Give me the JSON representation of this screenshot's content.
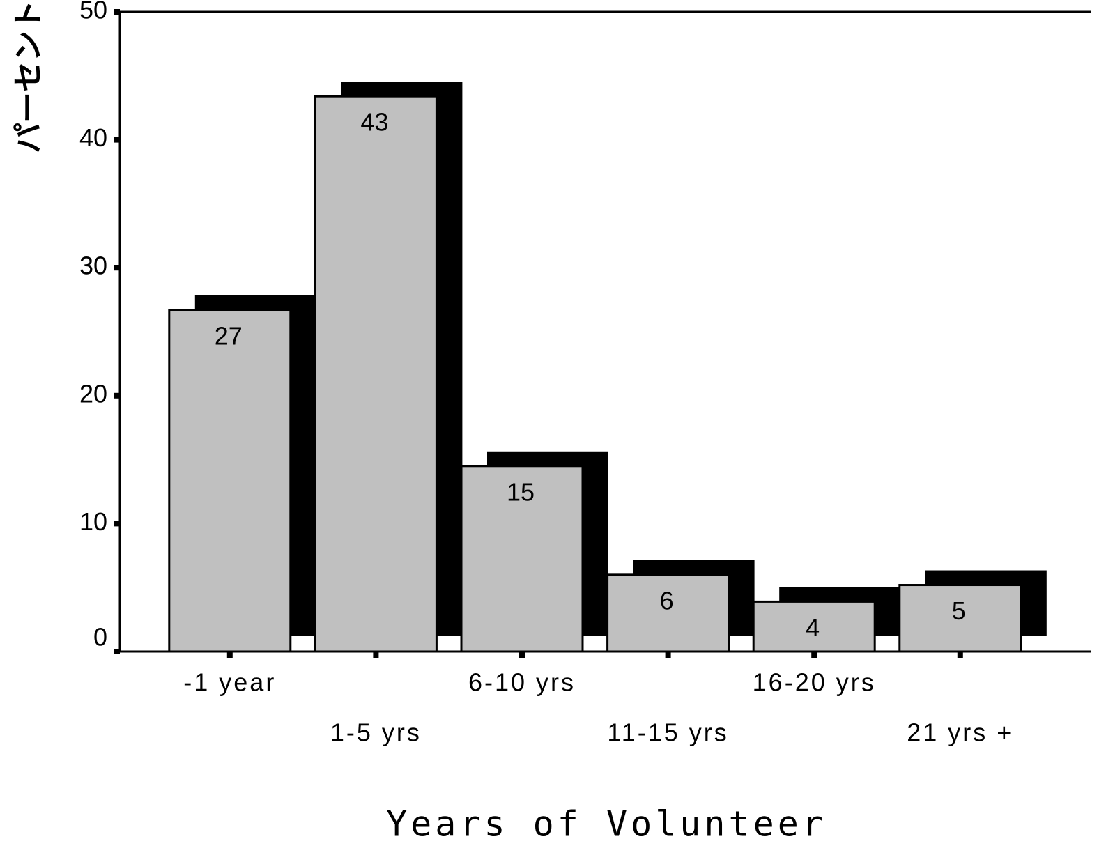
{
  "chart_data": {
    "type": "bar",
    "x_label": "Years of Volunteer",
    "y_label": "パーセント",
    "categories": [
      "-1 year",
      "1-5 yrs",
      "6-10 yrs",
      "11-15 yrs",
      "16-20 yrs",
      "21 yrs +"
    ],
    "values": [
      26.7,
      43.4,
      14.5,
      6.0,
      3.9,
      5.2
    ],
    "value_labels": [
      "27",
      "43",
      "15",
      "6",
      "4",
      "5"
    ],
    "color": "#c0c0c0",
    "ylim": [
      0,
      50
    ],
    "yticks": [
      0,
      10,
      20,
      30,
      40,
      50
    ]
  }
}
